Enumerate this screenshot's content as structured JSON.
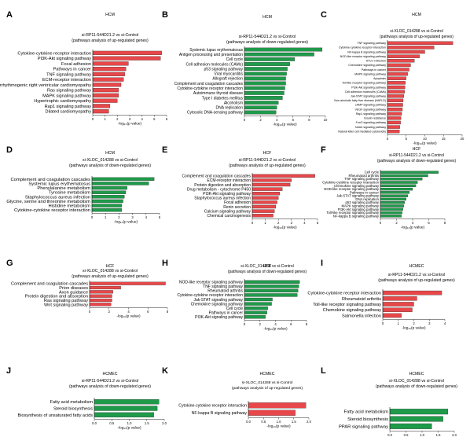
{
  "colors": {
    "up": "#e8474a",
    "down": "#1f9a4a",
    "axis": "#222222"
  },
  "chart_data": [
    {
      "letter": "A",
      "type": "bar",
      "orientation": "horizontal",
      "color": "up",
      "group": "HCM",
      "comparison": "si-RP11-544D21.2 vs si-Control",
      "subtitle": "(pathways analysis of up-regulated genes)",
      "xlabel": "-log₁₀(p value)",
      "xlim": [
        0,
        6
      ],
      "ticks": [
        0,
        1,
        2,
        3,
        4,
        5,
        6
      ],
      "tick_labels": [
        "0",
        "1",
        "2",
        "3",
        "4",
        "5",
        "6"
      ],
      "categories": [
        "Cytokine-cytokine receptor interaction",
        "PI3K-Akt signaling pathway",
        "Focal adhesion",
        "Pathways in cancer",
        "TNF signaling pathway",
        "ECM-receptor interaction",
        "Arrhythmogenic right ventricular cardiomyopathy",
        "Ras signaling pathway",
        "MAPK signaling pathway",
        "Hypertrophic cardiomyopathy",
        "Rap1 signaling pathway",
        "Dilated cardiomyopathy"
      ],
      "values": [
        5.6,
        5.5,
        2.9,
        2.7,
        2.6,
        2.5,
        2.3,
        2.1,
        2.1,
        2.0,
        1.4,
        1.3
      ]
    },
    {
      "letter": "B",
      "type": "bar",
      "orientation": "horizontal",
      "color": "down",
      "group": "HCM",
      "comparison": "si-RP11-544D21.2 vs si-Control",
      "subtitle": "(pathways analysis of down-regulated genes)",
      "xlabel": "-log₁₀(p value)",
      "xlim": [
        0,
        10
      ],
      "ticks": [
        0,
        2,
        4,
        6,
        8,
        10
      ],
      "tick_labels": [
        "0",
        "2",
        "4",
        "6",
        "8",
        "10"
      ],
      "categories": [
        "Systemic lupus erythematosus",
        "Antigen processing and presentation",
        "Cell cycle",
        "Cell adhesion molecules (CAMs)",
        "p53 signaling pathway",
        "Viral myocarditis",
        "Allograft rejection",
        "Complement and coagulation cascades",
        "Cytokine-cytokine receptor interaction",
        "Autoimmune thyroid disease",
        "Type I diabetes mellitus",
        "Alcoholism",
        "DNA replication",
        "Cytosolic DNA-sensing pathway"
      ],
      "values": [
        9.6,
        8.6,
        6.2,
        5.6,
        5.3,
        5.2,
        5.1,
        5.1,
        5.0,
        4.9,
        4.7,
        4.2,
        4.0,
        3.9
      ]
    },
    {
      "letter": "C",
      "type": "bar",
      "orientation": "horizontal",
      "color": "up",
      "group": "HCM",
      "comparison": "si-XLOC_014288 vs si-Control",
      "subtitle": "(pathways analysis of up-regulated genes)",
      "xlabel": "-log₁₀(p value)",
      "xlim": [
        0,
        20
      ],
      "ticks": [
        0,
        5,
        10,
        15,
        20
      ],
      "tick_labels": [
        "0",
        "5",
        "10",
        "15",
        "20"
      ],
      "categories": [
        "TNF signaling pathway",
        "Cytokine-cytokine receptor interaction",
        "NF-kappa B signaling pathway",
        "NOD-like receptor signaling pathway",
        "HTLV-I infection",
        "Chemokine signaling pathway",
        "Pathways in cancer",
        "MAPK signaling pathway",
        "Apoptosis",
        "Toll-like receptor signaling pathway",
        "PI3K-Akt signaling pathway",
        "Cell adhesion molecules (CAMs)",
        "Jak-STAT signaling pathway",
        "Non-alcoholic fatty liver disease (NAFLD)",
        "cAMP signaling pathway",
        "VEGF signaling pathway",
        "Rap1 signaling pathway",
        "Insulin resistance",
        "FoxO signaling pathway",
        "Notch signaling pathway",
        "Natural killer cell mediated cytotoxicity"
      ],
      "values": [
        17.5,
        12.5,
        10.0,
        8.6,
        7.2,
        6.2,
        5.8,
        5.4,
        5.0,
        4.8,
        4.7,
        4.6,
        4.4,
        4.2,
        4.1,
        4.0,
        3.8,
        3.6,
        3.5,
        3.3,
        3.2
      ]
    },
    {
      "letter": "D",
      "type": "bar",
      "orientation": "horizontal",
      "color": "down",
      "group": "HCM",
      "comparison": "si-XLOC_014288 vs si-Control",
      "subtitle": "(pathways analysis of down-regulated genes)",
      "xlabel": "-log₁₀(p value)",
      "xlim": [
        0,
        5
      ],
      "ticks": [
        0,
        1,
        2,
        3,
        4,
        5
      ],
      "tick_labels": [
        "0",
        "1",
        "2",
        "3",
        "4",
        "5"
      ],
      "categories": [
        "Complement and coagulation cascades",
        "Systemic lupus erythematosus",
        "Phenylalanine metabolism",
        "Tyrosine metabolism",
        "Staphylococcus aureus infection",
        "Glycine, serine and threonine metabolism",
        "Histidine metabolism",
        "Cytokine-cytokine receptor interaction"
      ],
      "values": [
        4.6,
        4.2,
        2.6,
        2.5,
        2.4,
        2.3,
        2.2,
        2.2
      ]
    },
    {
      "letter": "E",
      "type": "bar",
      "orientation": "horizontal",
      "color": "up",
      "group": "HCF",
      "comparison": "si-RP11-544D21.2 vs si-Control",
      "subtitle": "(pathways analysis of up-regulated genes)",
      "xlabel": "-log₁₀(p value)",
      "xlim": [
        0,
        5
      ],
      "ticks": [
        0,
        1,
        2,
        3,
        4,
        5
      ],
      "tick_labels": [
        "0",
        "1",
        "2",
        "3",
        "4",
        "5"
      ],
      "categories": [
        "Complement and coagulation cascades",
        "ECM-receptor interaction",
        "Protein digestion and absorption",
        "Drug metabolism - cytochrome P450",
        "PI3K-Akt signaling pathway",
        "Staphylococcus aureus infection",
        "Focal adhesion",
        "Renin secretion",
        "Calcium signaling pathway",
        "Chemical carcinogenesis"
      ],
      "values": [
        4.8,
        3.0,
        2.9,
        2.3,
        2.1,
        2.0,
        1.9,
        1.8,
        1.7,
        1.6
      ]
    },
    {
      "letter": "F",
      "type": "bar",
      "orientation": "horizontal",
      "color": "down",
      "group": "HCF",
      "comparison": "si-RP11-544D21.2 vs si-Control",
      "subtitle": "(pathways analysis of down-regulated genes)",
      "xlabel": "-log₁₀(p value)",
      "xlim": [
        0,
        8
      ],
      "ticks": [
        0,
        2,
        4,
        6,
        8
      ],
      "tick_labels": [
        "0",
        "2",
        "4",
        "6",
        "8"
      ],
      "categories": [
        "Cell cycle",
        "Rheumatoid arthritis",
        "TNF signaling pathway",
        "Cytokine-cytokine receptor interaction",
        "Chemokine signaling pathway",
        "NOD-like receptor signaling pathway",
        "Pathways in cancer",
        "Jak-STAT signaling pathway",
        "DNA replication",
        "p53 signaling pathway",
        "MAPK signaling pathway",
        "PI3K-Akt signaling pathway",
        "Toll-like receptor signaling pathway",
        "NF-kappa B signaling pathway"
      ],
      "values": [
        7.2,
        5.9,
        5.2,
        4.6,
        4.4,
        4.0,
        3.6,
        3.4,
        3.2,
        3.0,
        2.9,
        2.8,
        2.7,
        2.6
      ]
    },
    {
      "letter": "G",
      "type": "bar",
      "orientation": "horizontal",
      "color": "up",
      "group": "HCF",
      "comparison": "si-XLOC_014288 vs si-Control",
      "subtitle": "(pathways analysis of up-regulated genes)",
      "xlabel": "-log₁₀(p value)",
      "xlim": [
        0,
        8
      ],
      "ticks": [
        0,
        2,
        4,
        6,
        8
      ],
      "tick_labels": [
        "0",
        "2",
        "4",
        "6",
        "8"
      ],
      "categories": [
        "Complement and coagulation cascades",
        "Prion diseases",
        "Axon guidance",
        "Protein digestion and absorption",
        "Ras signaling pathway",
        "Wnt signaling pathway"
      ],
      "values": [
        7.8,
        3.2,
        2.4,
        2.3,
        2.3,
        2.2
      ]
    },
    {
      "letter": "H",
      "type": "bar",
      "orientation": "horizontal",
      "color": "down",
      "group": "HCF",
      "comparison": "si-XLOC_014288 vs si-Control",
      "subtitle": "(pathways analysis of down-regulated genes)",
      "xlabel": "-log₁₀(p value)",
      "xlim": [
        0,
        8
      ],
      "ticks": [
        0,
        2,
        4,
        6,
        8
      ],
      "tick_labels": [
        "0",
        "2",
        "4",
        "6",
        "8"
      ],
      "categories": [
        "NOD-like receptor signaling pathway",
        "TNF signaling pathway",
        "Rheumatoid arthritis",
        "Cytokine-cytokine receptor interaction",
        "Jak-STAT signaling pathway",
        "Chemokine signaling pathway",
        "Cell cycle",
        "Pathways in cancer",
        "PI3K-Akt signaling pathway"
      ],
      "values": [
        7.1,
        7.0,
        6.9,
        6.8,
        3.6,
        3.5,
        3.0,
        2.9,
        2.7
      ]
    },
    {
      "letter": "I",
      "type": "bar",
      "orientation": "horizontal",
      "color": "up",
      "group": "HCMEC",
      "comparison": "si-RP11-544D21.2 vs si-Control",
      "subtitle": "(pathways analysis of up-regulated genes)",
      "xlabel": "-log₁₀(p value)",
      "xlim": [
        0,
        4
      ],
      "ticks": [
        0,
        1,
        2,
        3,
        4
      ],
      "tick_labels": [
        "0",
        "1",
        "2",
        "3",
        "4"
      ],
      "categories": [
        "Cytokine-cytokine receptor interaction",
        "Rheumatoid arthritis",
        "Toll-like receptor signaling pathway",
        "Chemokine signaling pathway",
        "Salmonella infection"
      ],
      "values": [
        3.8,
        2.2,
        2.0,
        1.9,
        1.2
      ]
    },
    {
      "letter": "J",
      "type": "bar",
      "orientation": "horizontal",
      "color": "down",
      "group": "HCMEC",
      "comparison": "si-RP11-544D21.2 vs si-Control",
      "subtitle": "(pathways analysis of down-regulated genes)",
      "xlabel": "-log₁₀(p value)",
      "xlim": [
        0,
        2.0
      ],
      "ticks": [
        0,
        0.5,
        1.0,
        1.5,
        2.0
      ],
      "tick_labels": [
        "0.0",
        "0.5",
        "1.0",
        "1.5",
        "2.0"
      ],
      "categories": [
        "Fatty acid metabolism",
        "Steroid biosynthesis",
        "Biosynthesis of unsaturated fatty acids"
      ],
      "values": [
        1.85,
        1.8,
        1.7
      ]
    },
    {
      "letter": "K",
      "type": "bar",
      "orientation": "horizontal",
      "color": "up",
      "group": "HCMEC",
      "comparison": "si-XLOC_014288 vs si-Control",
      "subtitle": "(pathways analysis of up-regulated genes)",
      "xlabel": "-log₁₀(p value)",
      "xlim": [
        0,
        2.0
      ],
      "ticks": [
        0,
        0.5,
        1.0,
        1.5,
        2.0
      ],
      "tick_labels": [
        "0.0",
        "0.5",
        "1.0",
        "1.5",
        "2.0"
      ],
      "categories": [
        "Cytokine-cytokine receptor interaction",
        "NF-kappa B signaling pathway"
      ],
      "values": [
        1.9,
        1.55
      ]
    },
    {
      "letter": "L",
      "type": "bar",
      "orientation": "horizontal",
      "color": "down",
      "group": "HCMEC",
      "comparison": "si-XLOC_014288 vs si-Control",
      "subtitle": "(pathways analysis of down-regulated genes)",
      "xlabel": "-log₁₀(p value)",
      "xlim": [
        0,
        2.0
      ],
      "ticks": [
        0,
        0.5,
        1.0,
        1.5,
        2.0
      ],
      "tick_labels": [
        "0.0",
        "0.5",
        "1.0",
        "1.5",
        "2.0"
      ],
      "categories": [
        "Fatty acid metabolism",
        "Steroid biosynthesis",
        "PPAR signaling pathway"
      ],
      "values": [
        1.8,
        1.65,
        1.3
      ]
    }
  ]
}
